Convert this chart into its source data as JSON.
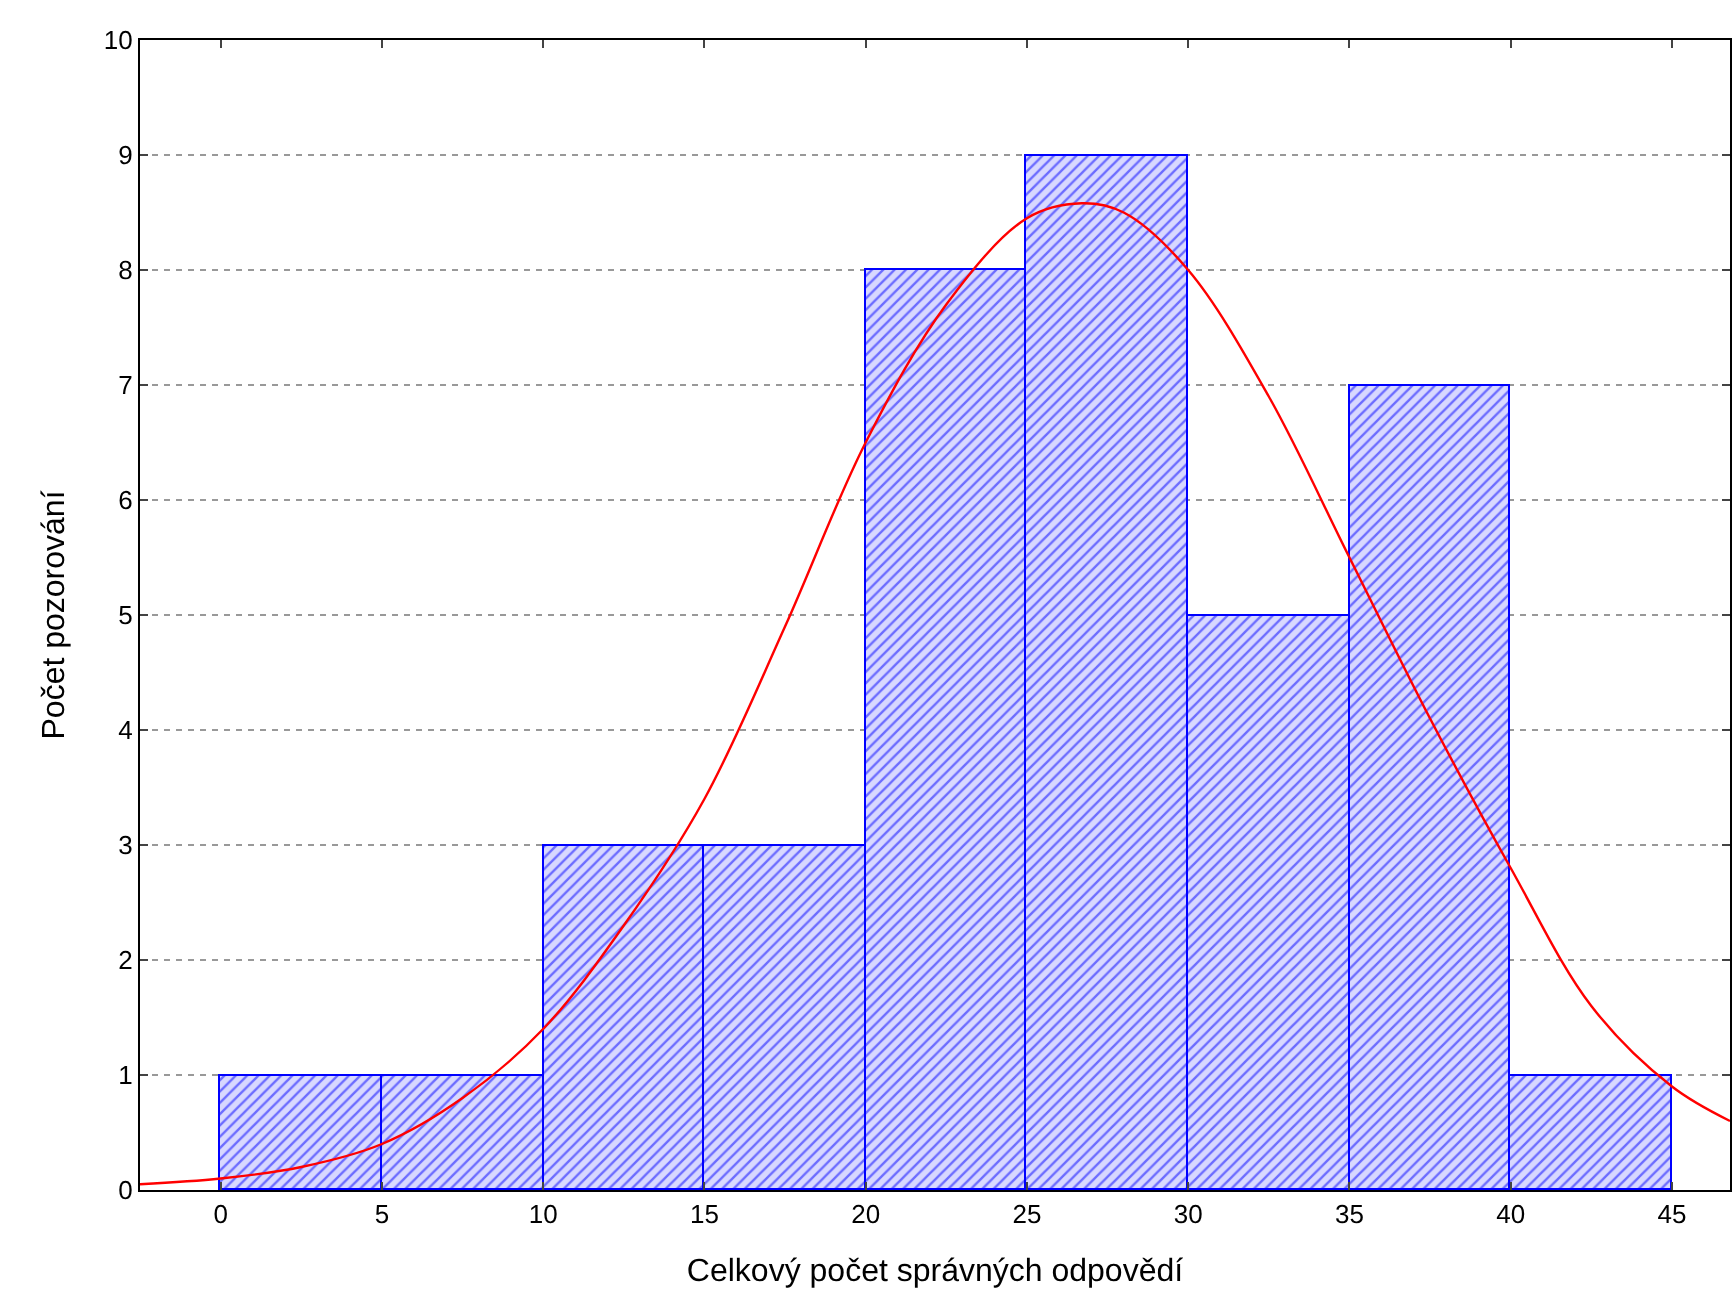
{
  "chart_data": {
    "type": "histogram",
    "xlabel": "Celkový počet správných odpovědí",
    "ylabel": "Počet pozorování",
    "bins": [
      0,
      5,
      10,
      15,
      20,
      25,
      30,
      35,
      40,
      45
    ],
    "values": [
      1,
      1,
      3,
      3,
      8,
      9,
      5,
      7,
      1
    ],
    "color": "#0000ff",
    "series": [
      {
        "type": "line",
        "color": "#ff0000",
        "x": [
          -2.5,
          0,
          2.5,
          5,
          7.5,
          10,
          12.5,
          15,
          17.5,
          20,
          22.5,
          25,
          26.7,
          28,
          30,
          32.5,
          35,
          37.5,
          40,
          42.5,
          45,
          46.8
        ],
        "values": [
          0.05,
          0.1,
          0.2,
          0.4,
          0.8,
          1.4,
          2.3,
          3.4,
          4.9,
          6.5,
          7.7,
          8.45,
          8.58,
          8.5,
          8.0,
          6.9,
          5.5,
          4.1,
          2.8,
          1.6,
          0.9,
          0.6
        ]
      }
    ],
    "xlim": [
      -2.5,
      46.8
    ],
    "ylim": [
      0,
      10
    ],
    "xticks": [
      0,
      5,
      10,
      15,
      20,
      25,
      30,
      35,
      40,
      45
    ],
    "yticks": [
      0,
      1,
      2,
      3,
      4,
      5,
      6,
      7,
      8,
      9,
      10
    ],
    "grid": "y"
  }
}
